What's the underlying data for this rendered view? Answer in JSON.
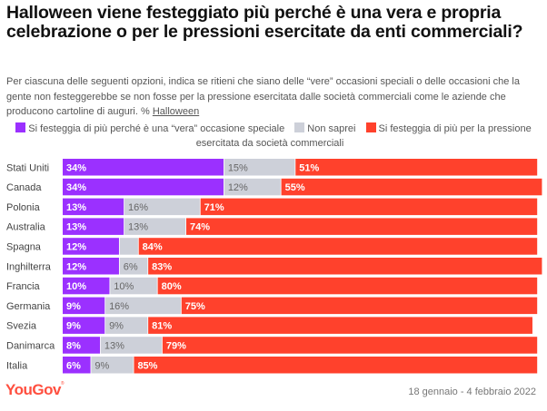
{
  "header": {
    "title": "Halloween viene festeggiato più perché è una vera e propria celebrazione o per le pressioni esercitate da enti commerciali?",
    "subtitle": "Per ciascuna delle seguenti opzioni, indica se ritieni che siano delle “vere” occasioni speciali o delle occasioni che la gente non festeggerebbe se non fosse per la pressione esercitata dalle società commerciali come le aziende che producono cartoline di auguri. % ",
    "subtitle_link": "Halloween"
  },
  "colors": {
    "real": "#9b30ff",
    "unsure": "#cdd0d9",
    "commercial": "#ff412c",
    "label_on_dark": "#ffffff",
    "label_on_light": "#666666"
  },
  "chart_data": {
    "type": "bar",
    "orientation": "horizontal",
    "stacked": true,
    "unit": "%",
    "categories": [
      "Stati Uniti",
      "Canada",
      "Polonia",
      "Australia",
      "Spagna",
      "Inghilterra",
      "Francia",
      "Germania",
      "Svezia",
      "Danimarca",
      "Italia"
    ],
    "series": [
      {
        "name": "Si festeggia di più perché è una “vera” occasione speciale",
        "color": "#9b30ff",
        "values": [
          34,
          34,
          13,
          13,
          12,
          12,
          10,
          9,
          9,
          8,
          6
        ]
      },
      {
        "name": "Non saprei",
        "color": "#cdd0d9",
        "values": [
          15,
          12,
          16,
          13,
          4,
          6,
          10,
          16,
          9,
          13,
          9
        ]
      },
      {
        "name": "Si festeggia di più per la pressione esercitata da società commerciali",
        "color": "#ff412c",
        "values": [
          51,
          55,
          71,
          74,
          84,
          83,
          80,
          75,
          81,
          79,
          85
        ]
      }
    ],
    "hidden_labels": [
      {
        "category": "Spagna",
        "series": "Non saprei"
      }
    ],
    "xlim": [
      0,
      100
    ],
    "grid": false,
    "legend_position": "top"
  },
  "legend": [
    {
      "label": "Si festeggia di più perché è una “vera” occasione speciale",
      "color": "#9b30ff"
    },
    {
      "label": "Non saprei",
      "color": "#cdd0d9"
    },
    {
      "label": "Si festeggia di più per la pressione esercitata da società commerciali",
      "color": "#ff412c"
    }
  ],
  "footer": {
    "brand": "YouGov",
    "date_range": "18 gennaio - 4 febbraio 2022"
  }
}
